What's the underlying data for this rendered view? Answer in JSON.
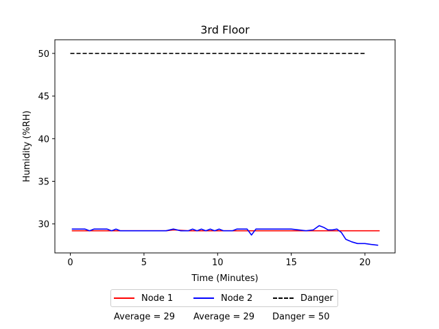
{
  "chart_data": {
    "type": "line",
    "title": "3rd Floor",
    "xlabel": "Time (Minutes)",
    "ylabel": "Humidity (%RH)",
    "xlim": [
      -1.05,
      22.05
    ],
    "ylim": [
      26.6,
      51.6
    ],
    "xticks": [
      "0",
      "5",
      "10",
      "15",
      "20"
    ],
    "yticks": [
      "30",
      "35",
      "40",
      "45",
      "50"
    ],
    "grid": false,
    "legend_position": "below",
    "series": [
      {
        "name": "Node 1",
        "color": "#ff0000",
        "style": "solid",
        "x": [
          0.1,
          2.0,
          4.0,
          6.0,
          6.5,
          7.0,
          8.0,
          10.0,
          12.0,
          14.0,
          14.5,
          15.5,
          17.0,
          19.0,
          20.0,
          21.0
        ],
        "y": [
          29.2,
          29.2,
          29.2,
          29.2,
          29.2,
          29.3,
          29.2,
          29.2,
          29.2,
          29.2,
          29.2,
          29.2,
          29.2,
          29.2,
          29.2,
          29.2
        ]
      },
      {
        "name": "Node 2",
        "color": "#0000ff",
        "style": "solid",
        "x": [
          0.1,
          0.5,
          1.0,
          1.3,
          1.6,
          2.0,
          2.5,
          2.8,
          3.1,
          3.4,
          4.0,
          5.0,
          6.0,
          6.5,
          7.0,
          7.5,
          8.0,
          8.3,
          8.6,
          8.9,
          9.2,
          9.5,
          9.8,
          10.1,
          10.4,
          10.7,
          11.0,
          11.3,
          11.6,
          12.0,
          12.3,
          12.6,
          13.0,
          13.5,
          14.0,
          14.5,
          15.0,
          15.5,
          16.0,
          16.5,
          16.9,
          17.2,
          17.5,
          17.8,
          18.1,
          18.4,
          18.7,
          19.1,
          19.5,
          20.0,
          20.4,
          20.9
        ],
        "y": [
          29.4,
          29.4,
          29.4,
          29.2,
          29.4,
          29.4,
          29.4,
          29.2,
          29.4,
          29.2,
          29.2,
          29.2,
          29.2,
          29.2,
          29.4,
          29.2,
          29.2,
          29.4,
          29.2,
          29.4,
          29.2,
          29.4,
          29.2,
          29.4,
          29.2,
          29.2,
          29.2,
          29.4,
          29.4,
          29.4,
          28.7,
          29.4,
          29.4,
          29.4,
          29.4,
          29.4,
          29.4,
          29.3,
          29.2,
          29.3,
          29.8,
          29.6,
          29.3,
          29.3,
          29.4,
          29.0,
          28.2,
          27.9,
          27.7,
          27.7,
          27.6,
          27.5
        ]
      },
      {
        "name": "Danger",
        "color": "#000000",
        "style": "dashed",
        "x": [
          0.0,
          20.0
        ],
        "y": [
          50.0,
          50.0
        ]
      }
    ],
    "annotations": [
      {
        "name": "node-1-average",
        "text": "Average = 29"
      },
      {
        "name": "node-2-average",
        "text": "Average = 29"
      },
      {
        "name": "danger-level",
        "text": "Danger = 50"
      }
    ]
  }
}
